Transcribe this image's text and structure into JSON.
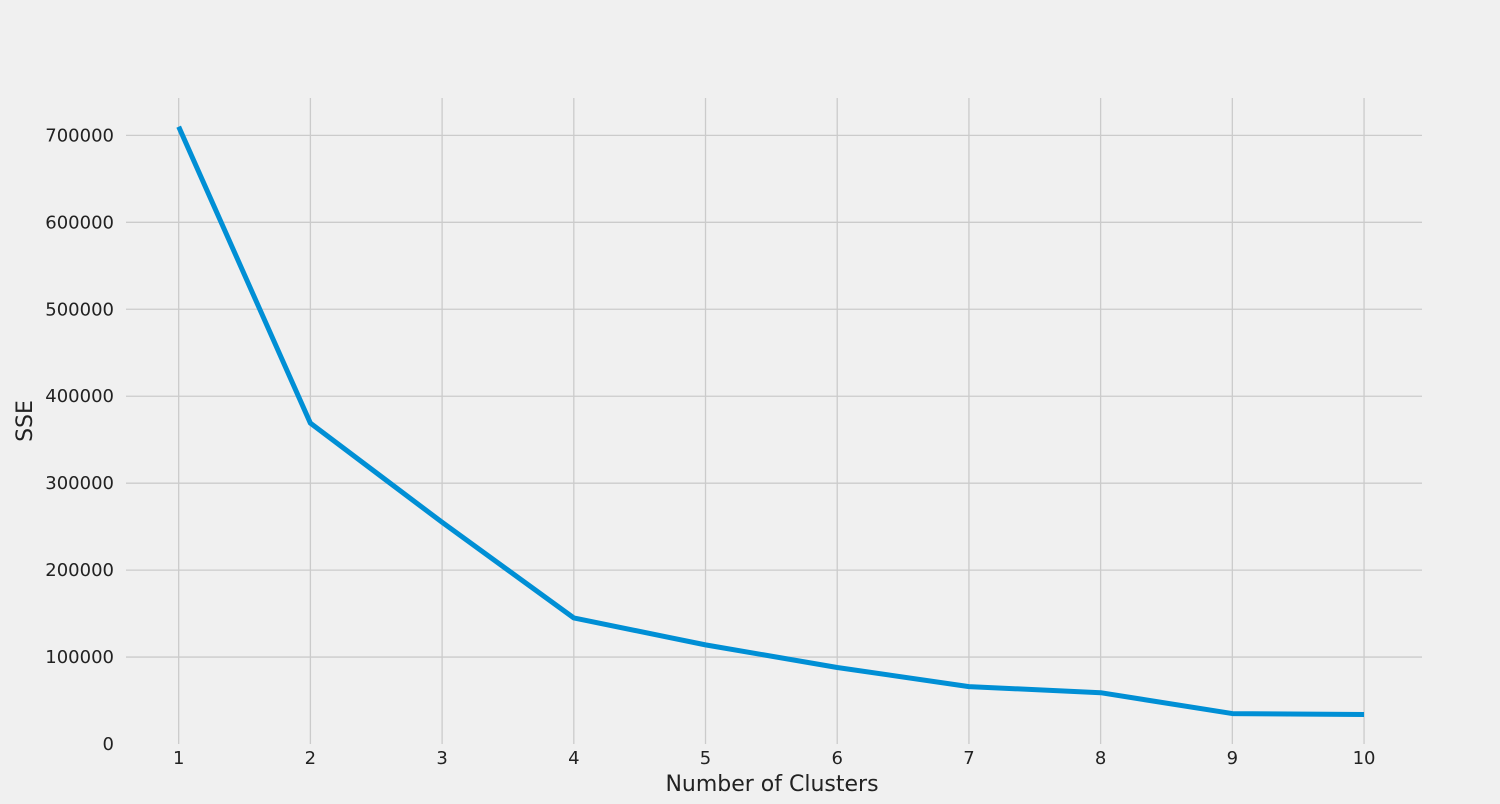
{
  "chart_data": {
    "type": "line",
    "title": "",
    "xlabel": "Number of Clusters",
    "ylabel": "SSE",
    "x": [
      1,
      2,
      3,
      4,
      5,
      6,
      7,
      8,
      9,
      10
    ],
    "series": [
      {
        "values": [
          710000,
          369000,
          255000,
          145000,
          114000,
          88000,
          66000,
          59000,
          35000,
          34000
        ]
      }
    ],
    "xticks": [
      "1",
      "2",
      "3",
      "4",
      "5",
      "6",
      "7",
      "8",
      "9",
      "10"
    ],
    "yticks": [
      "0",
      "100000",
      "200000",
      "300000",
      "400000",
      "500000",
      "600000",
      "700000"
    ],
    "xlim": [
      0.6,
      10.44
    ],
    "ylim": [
      0,
      743000
    ],
    "grid": true,
    "line_color": "#008fd5",
    "grid_color": "#cbcbcb",
    "background_color": "#f0f0f0"
  }
}
